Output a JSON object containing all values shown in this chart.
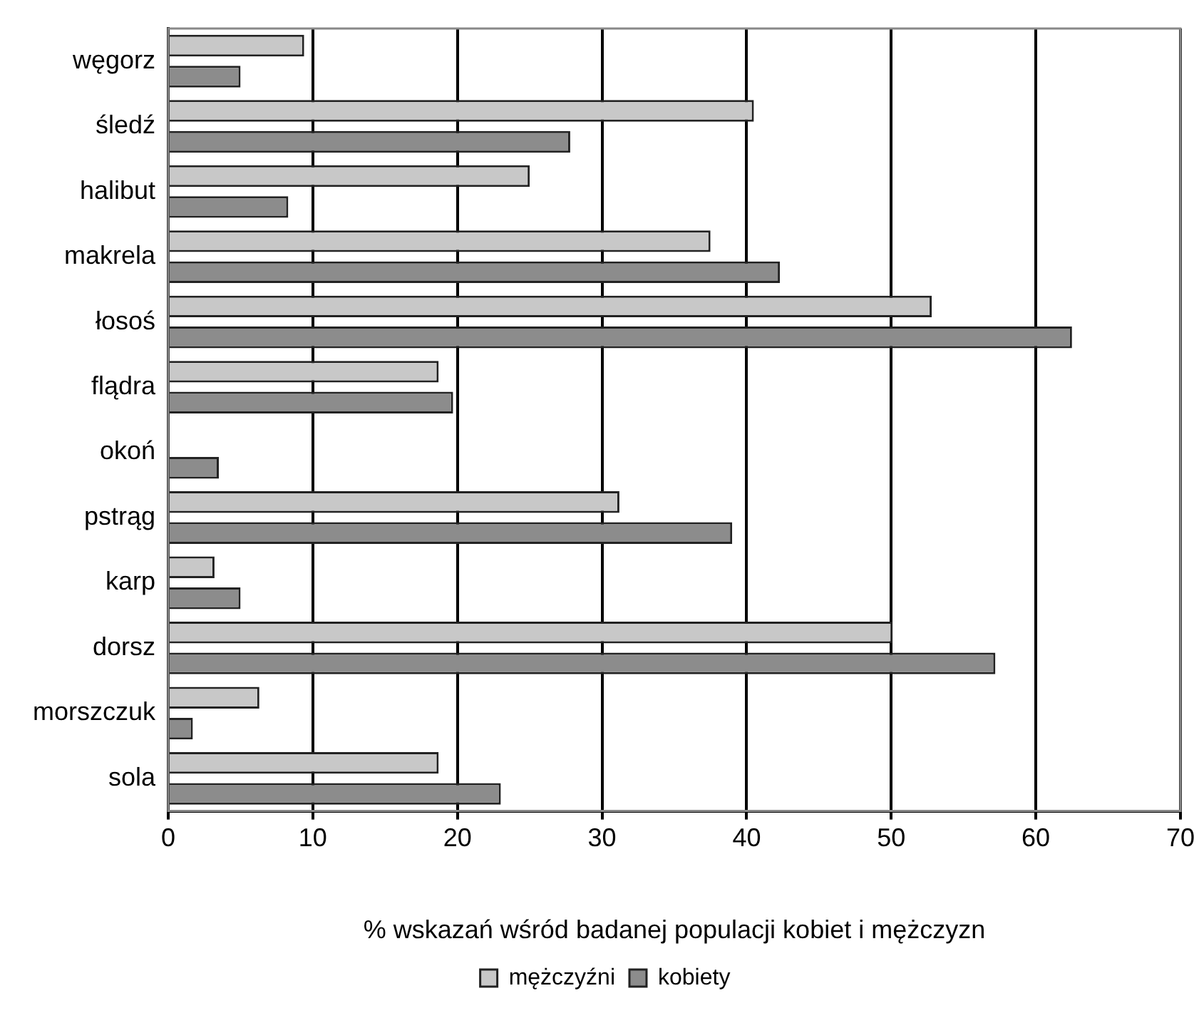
{
  "chart_data": {
    "type": "bar",
    "orientation": "horizontal",
    "xlabel": "% wskazań wśród badanej populacji kobiet i mężczyzn",
    "categories": [
      "węgorz",
      "śledź",
      "halibut",
      "makrela",
      "łosoś",
      "flądra",
      "okoń",
      "pstrąg",
      "karp",
      "dorsz",
      "morszczuk",
      "sola"
    ],
    "series": [
      {
        "name": "mężczyźni",
        "color": "#c8c8c8",
        "values": [
          9.4,
          40.5,
          25,
          37.5,
          52.8,
          18.7,
          null,
          31.2,
          3.2,
          50.1,
          6.3,
          18.7
        ]
      },
      {
        "name": "kobiety",
        "color": "#8c8c8c",
        "values": [
          5,
          27.8,
          8.3,
          42.3,
          62.5,
          19.7,
          3.5,
          39,
          5,
          57.2,
          1.7,
          23
        ]
      }
    ],
    "xlim": [
      0,
      70
    ],
    "xticks": [
      0,
      10,
      20,
      30,
      40,
      50,
      60,
      70
    ],
    "grid": "x",
    "legend": "bottom"
  }
}
